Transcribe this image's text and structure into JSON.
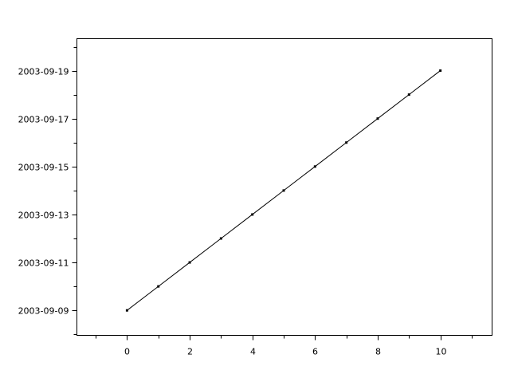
{
  "chart_data": {
    "type": "line",
    "title": "",
    "xlabel": "",
    "ylabel": "",
    "x": [
      0,
      1,
      2,
      3,
      4,
      5,
      6,
      7,
      8,
      9,
      10
    ],
    "y": [
      "2003-09-09",
      "2003-09-10",
      "2003-09-11",
      "2003-09-12",
      "2003-09-13",
      "2003-09-14",
      "2003-09-15",
      "2003-09-16",
      "2003-09-17",
      "2003-09-18",
      "2003-09-19"
    ],
    "xlim": [
      -1.6,
      11.65
    ],
    "ylim": [
      "2003-09-07 23:00",
      "2003-09-20 08:00"
    ],
    "x_ticks": [
      0,
      2,
      4,
      6,
      8,
      10
    ],
    "x_tick_labels": [
      "0",
      "2",
      "4",
      "6",
      "8",
      "10"
    ],
    "x_minor_ticks": [
      -1,
      1,
      3,
      5,
      7,
      9,
      11
    ],
    "y_ticks": [
      "2003-09-09",
      "2003-09-11",
      "2003-09-13",
      "2003-09-15",
      "2003-09-17",
      "2003-09-19"
    ],
    "y_tick_labels": [
      "2003-09-09",
      "2003-09-11",
      "2003-09-13",
      "2003-09-15",
      "2003-09-17",
      "2003-09-19"
    ],
    "y_minor_ticks": [
      "2003-09-08",
      "2003-09-10",
      "2003-09-12",
      "2003-09-14",
      "2003-09-16",
      "2003-09-18",
      "2003-09-20"
    ],
    "grid": false,
    "line_color": "#000000",
    "marker": "point"
  }
}
